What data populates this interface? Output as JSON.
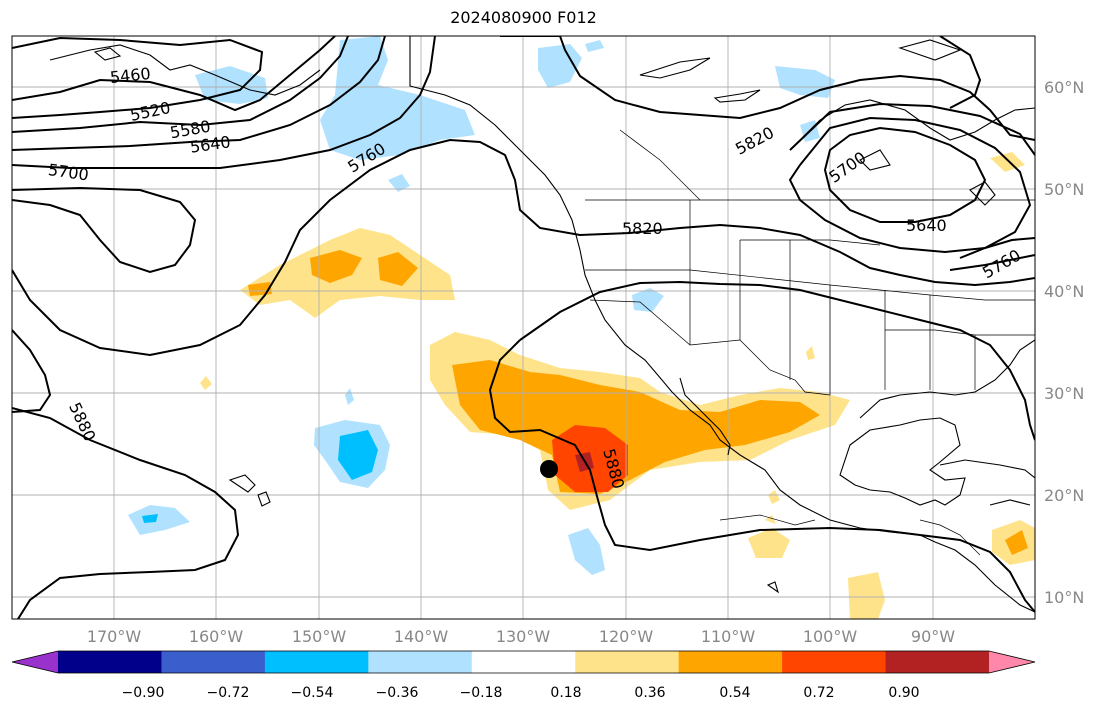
{
  "map": {
    "title": "2024080900 F012",
    "lat_labels": [
      "60°N",
      "50°N",
      "40°N",
      "30°N",
      "20°N",
      "10°N"
    ],
    "lon_labels": [
      "170°W",
      "160°W",
      "150°W",
      "140°W",
      "130°W",
      "120°W",
      "110°W",
      "100°W",
      "90°W"
    ],
    "contour_labels": [
      {
        "text": "5460"
      },
      {
        "text": "5520"
      },
      {
        "text": "5580"
      },
      {
        "text": "5640"
      },
      {
        "text": "5700"
      },
      {
        "text": "5760"
      },
      {
        "text": "5820"
      },
      {
        "text": "5820"
      },
      {
        "text": "5700"
      },
      {
        "text": "5640"
      },
      {
        "text": "5760"
      },
      {
        "text": "5880"
      },
      {
        "text": "5880"
      }
    ],
    "colorbar": {
      "ticks": [
        "−0.90",
        "−0.72",
        "−0.54",
        "−0.36",
        "−0.18",
        "0.18",
        "0.36",
        "0.54",
        "0.72",
        "0.90"
      ],
      "colors": [
        "#9932cc",
        "#00008b",
        "#3a5fcd",
        "#00bfff",
        "#b0e2ff",
        "#ffffff",
        "#ffe38a",
        "#ffa500",
        "#ff4500",
        "#b22222",
        "#ff88aa"
      ]
    },
    "marker": {
      "name": "storm-center-marker"
    }
  }
}
